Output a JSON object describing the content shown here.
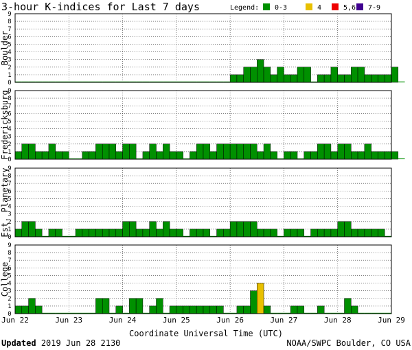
{
  "chart_data": {
    "type": "bar",
    "title": "3-hour K-indices for Last 7 days",
    "legend_title": "Legend:",
    "legend": [
      {
        "label": "0-3",
        "color": "#009000"
      },
      {
        "label": "4",
        "color": "#e8c000"
      },
      {
        "label": "5,6",
        "color": "#ee0000"
      },
      {
        "label": "7-9",
        "color": "#400090"
      }
    ],
    "xlabel": "Coordinate Universal Time (UTC)",
    "x_ticks": [
      "Jun 22",
      "Jun 23",
      "Jun 24",
      "Jun 25",
      "Jun 26",
      "Jun 27",
      "Jun 28",
      "Jun 29"
    ],
    "ylim": [
      0,
      9
    ],
    "y_ticks": [
      "0",
      "1",
      "2",
      "3",
      "4",
      "5",
      "6",
      "7",
      "8",
      "9"
    ],
    "grid": true,
    "panels": [
      {
        "name": "Boulder",
        "values": [
          0,
          0,
          0,
          0,
          0,
          0,
          0,
          0,
          0,
          0,
          0,
          0,
          0,
          0,
          0,
          0,
          0,
          0,
          0,
          0,
          0,
          0,
          0,
          0,
          0,
          0,
          0,
          0,
          0,
          0,
          0,
          0,
          1,
          1,
          2,
          2,
          3,
          2,
          1,
          2,
          1,
          1,
          2,
          2,
          0,
          1,
          1,
          2,
          1,
          1,
          2,
          2,
          1,
          1,
          1,
          1,
          2,
          0
        ]
      },
      {
        "name": "Fredericksburg",
        "values": [
          1,
          2,
          2,
          1,
          1,
          2,
          1,
          1,
          0,
          0,
          1,
          1,
          2,
          2,
          2,
          1,
          2,
          2,
          0,
          1,
          2,
          1,
          2,
          1,
          1,
          0,
          1,
          2,
          2,
          1,
          2,
          2,
          2,
          2,
          2,
          2,
          1,
          2,
          1,
          0,
          1,
          1,
          0,
          1,
          1,
          2,
          2,
          1,
          2,
          2,
          1,
          1,
          2,
          1,
          1,
          1,
          1,
          0
        ]
      },
      {
        "name": "Est. Planetary",
        "values": [
          1,
          2,
          2,
          1,
          0,
          1,
          1,
          0,
          0,
          1,
          1,
          1,
          1,
          1,
          1,
          1,
          2,
          2,
          1,
          1,
          2,
          1,
          2,
          1,
          1,
          0,
          1,
          1,
          1,
          0,
          1,
          1,
          2,
          2,
          2,
          2,
          1,
          1,
          1,
          0,
          1,
          1,
          1,
          0,
          1,
          1,
          1,
          1,
          2,
          2,
          1,
          1,
          1,
          1,
          1,
          0
        ]
      },
      {
        "name": "College",
        "values": [
          1,
          1,
          2,
          1,
          0,
          0,
          0,
          0,
          0,
          0,
          0,
          0,
          2,
          2,
          0,
          1,
          0,
          2,
          2,
          0,
          1,
          2,
          0,
          1,
          1,
          1,
          1,
          1,
          1,
          1,
          1,
          0,
          0,
          1,
          1,
          3,
          4,
          1,
          0,
          0,
          0,
          1,
          1,
          0,
          0,
          1,
          0,
          0,
          0,
          2,
          1,
          0,
          0,
          0,
          0,
          0
        ]
      }
    ]
  },
  "footer": {
    "updated_label": "Updated",
    "updated_value": "2019 Jun 28 2130",
    "source": "NOAA/SWPC Boulder, CO USA"
  }
}
